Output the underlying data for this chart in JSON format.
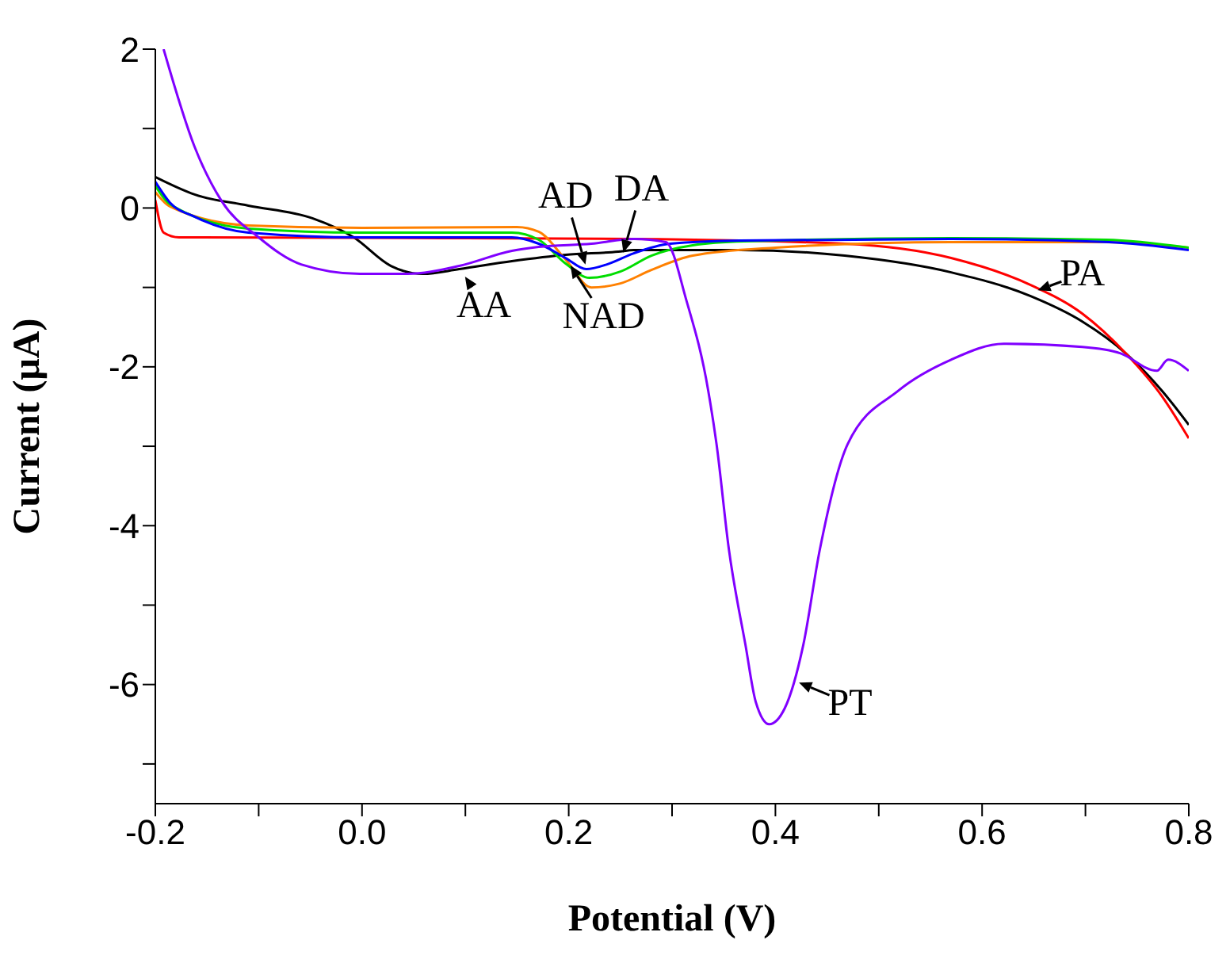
{
  "chart_data": {
    "type": "line",
    "xlabel": "Potential (V)",
    "ylabel": "Current (μA)",
    "xlim": [
      -0.2,
      0.8
    ],
    "ylim": [
      -7.5,
      2
    ],
    "xticks": [
      -0.2,
      {
        "value": -0.1,
        "label": null
      },
      {
        "value": 0,
        "label": "0.0"
      },
      {
        "value": 0.1,
        "label": null
      },
      0.2,
      {
        "value": 0.3,
        "label": null
      },
      0.4,
      {
        "value": 0.5,
        "label": null
      },
      0.6,
      {
        "value": 0.7,
        "label": null
      },
      0.8
    ],
    "yticks": [
      {
        "value": -7,
        "label": null
      },
      -6,
      {
        "value": -5,
        "label": null
      },
      -4,
      {
        "value": -3,
        "label": null
      },
      -2,
      {
        "value": -1,
        "label": null
      },
      0,
      {
        "value": 1,
        "label": null
      },
      2
    ],
    "grid": false,
    "marker": "none",
    "line_style": "solid",
    "series": [
      {
        "color": "#000000",
        "x": [
          -0.2,
          -0.162,
          -0.11,
          -0.048,
          -0.008,
          0.028,
          0.059,
          0.094,
          0.145,
          0.197,
          0.248,
          0.263,
          0.366,
          0.467,
          0.57,
          0.647,
          0.697,
          0.739,
          0.774,
          0.8
        ],
        "values": [
          0.39,
          0.17,
          0.03,
          -0.13,
          -0.37,
          -0.73,
          -0.83,
          -0.77,
          -0.67,
          -0.59,
          -0.55,
          -0.53,
          -0.53,
          -0.6,
          -0.81,
          -1.11,
          -1.43,
          -1.83,
          -2.3,
          -2.73
        ]
      },
      {
        "color": "#ff0000",
        "x": [
          -0.2,
          -0.192,
          -0.177,
          0.1,
          0.263,
          0.467,
          0.57,
          0.647,
          0.697,
          0.739,
          0.774,
          0.8
        ],
        "values": [
          0.1,
          -0.31,
          -0.37,
          -0.38,
          -0.39,
          -0.45,
          -0.63,
          -0.97,
          -1.33,
          -1.83,
          -2.37,
          -2.9
        ]
      },
      {
        "color": "#ff8000",
        "x": [
          -0.2,
          -0.186,
          -0.11,
          0,
          0.15,
          0.171,
          0.197,
          0.222,
          0.25,
          0.28,
          0.32,
          0.4,
          0.57,
          0.72,
          0.8
        ],
        "values": [
          0.2,
          0.02,
          -0.22,
          -0.25,
          -0.24,
          -0.3,
          -0.65,
          -1.0,
          -0.95,
          -0.78,
          -0.6,
          -0.5,
          -0.43,
          -0.43,
          -0.5
        ]
      },
      {
        "color": "#00dd00",
        "x": [
          -0.2,
          -0.186,
          -0.11,
          0,
          0.145,
          0.171,
          0.197,
          0.22,
          0.25,
          0.28,
          0.32,
          0.37,
          0.57,
          0.72,
          0.8
        ],
        "values": [
          0.28,
          0.05,
          -0.26,
          -0.31,
          -0.31,
          -0.4,
          -0.7,
          -0.88,
          -0.8,
          -0.6,
          -0.47,
          -0.42,
          -0.38,
          -0.4,
          -0.5
        ]
      },
      {
        "color": "#0000ff",
        "x": [
          -0.2,
          -0.186,
          -0.162,
          -0.11,
          0,
          0.145,
          0.171,
          0.197,
          0.217,
          0.237,
          0.263,
          0.298,
          0.366,
          0.57,
          0.723,
          0.8
        ],
        "values": [
          0.33,
          0.07,
          -0.11,
          -0.31,
          -0.37,
          -0.37,
          -0.45,
          -0.63,
          -0.77,
          -0.71,
          -0.57,
          -0.45,
          -0.41,
          -0.39,
          -0.43,
          -0.53
        ]
      },
      {
        "color": "#8000ff",
        "x": [
          -0.192,
          -0.162,
          -0.136,
          -0.1,
          -0.059,
          -0.002,
          0.044,
          0.094,
          0.145,
          0.171,
          0.222,
          0.263,
          0.294,
          0.314,
          0.335,
          0.343,
          0.355,
          0.371,
          0.381,
          0.394,
          0.409,
          0.427,
          0.443,
          0.47,
          0.519,
          0.57,
          0.621,
          0.697,
          0.734,
          0.769,
          0.78,
          0.8
        ],
        "values": [
          2.0,
          0.77,
          0.09,
          -0.37,
          -0.71,
          -0.83,
          -0.83,
          -0.73,
          -0.54,
          -0.49,
          -0.45,
          -0.39,
          -0.43,
          -1.17,
          -2.3,
          -2.97,
          -4.3,
          -5.5,
          -6.22,
          -6.5,
          -6.3,
          -5.5,
          -4.3,
          -2.97,
          -2.3,
          -1.91,
          -1.71,
          -1.75,
          -1.83,
          -2.05,
          -1.91,
          -2.05
        ]
      }
    ],
    "annotations": [
      {
        "text": "AA",
        "x": 0.098,
        "y": -0.83
      },
      {
        "text": "AD",
        "x": 0.217,
        "y": -0.75
      },
      {
        "text": "DA",
        "x": 0.252,
        "y": -0.6
      },
      {
        "text": "NAD",
        "x": 0.2,
        "y": -0.69
      },
      {
        "text": "PA",
        "x": 0.651,
        "y": -1.05
      },
      {
        "text": "PT",
        "x": 0.42,
        "y": -5.96
      }
    ]
  }
}
